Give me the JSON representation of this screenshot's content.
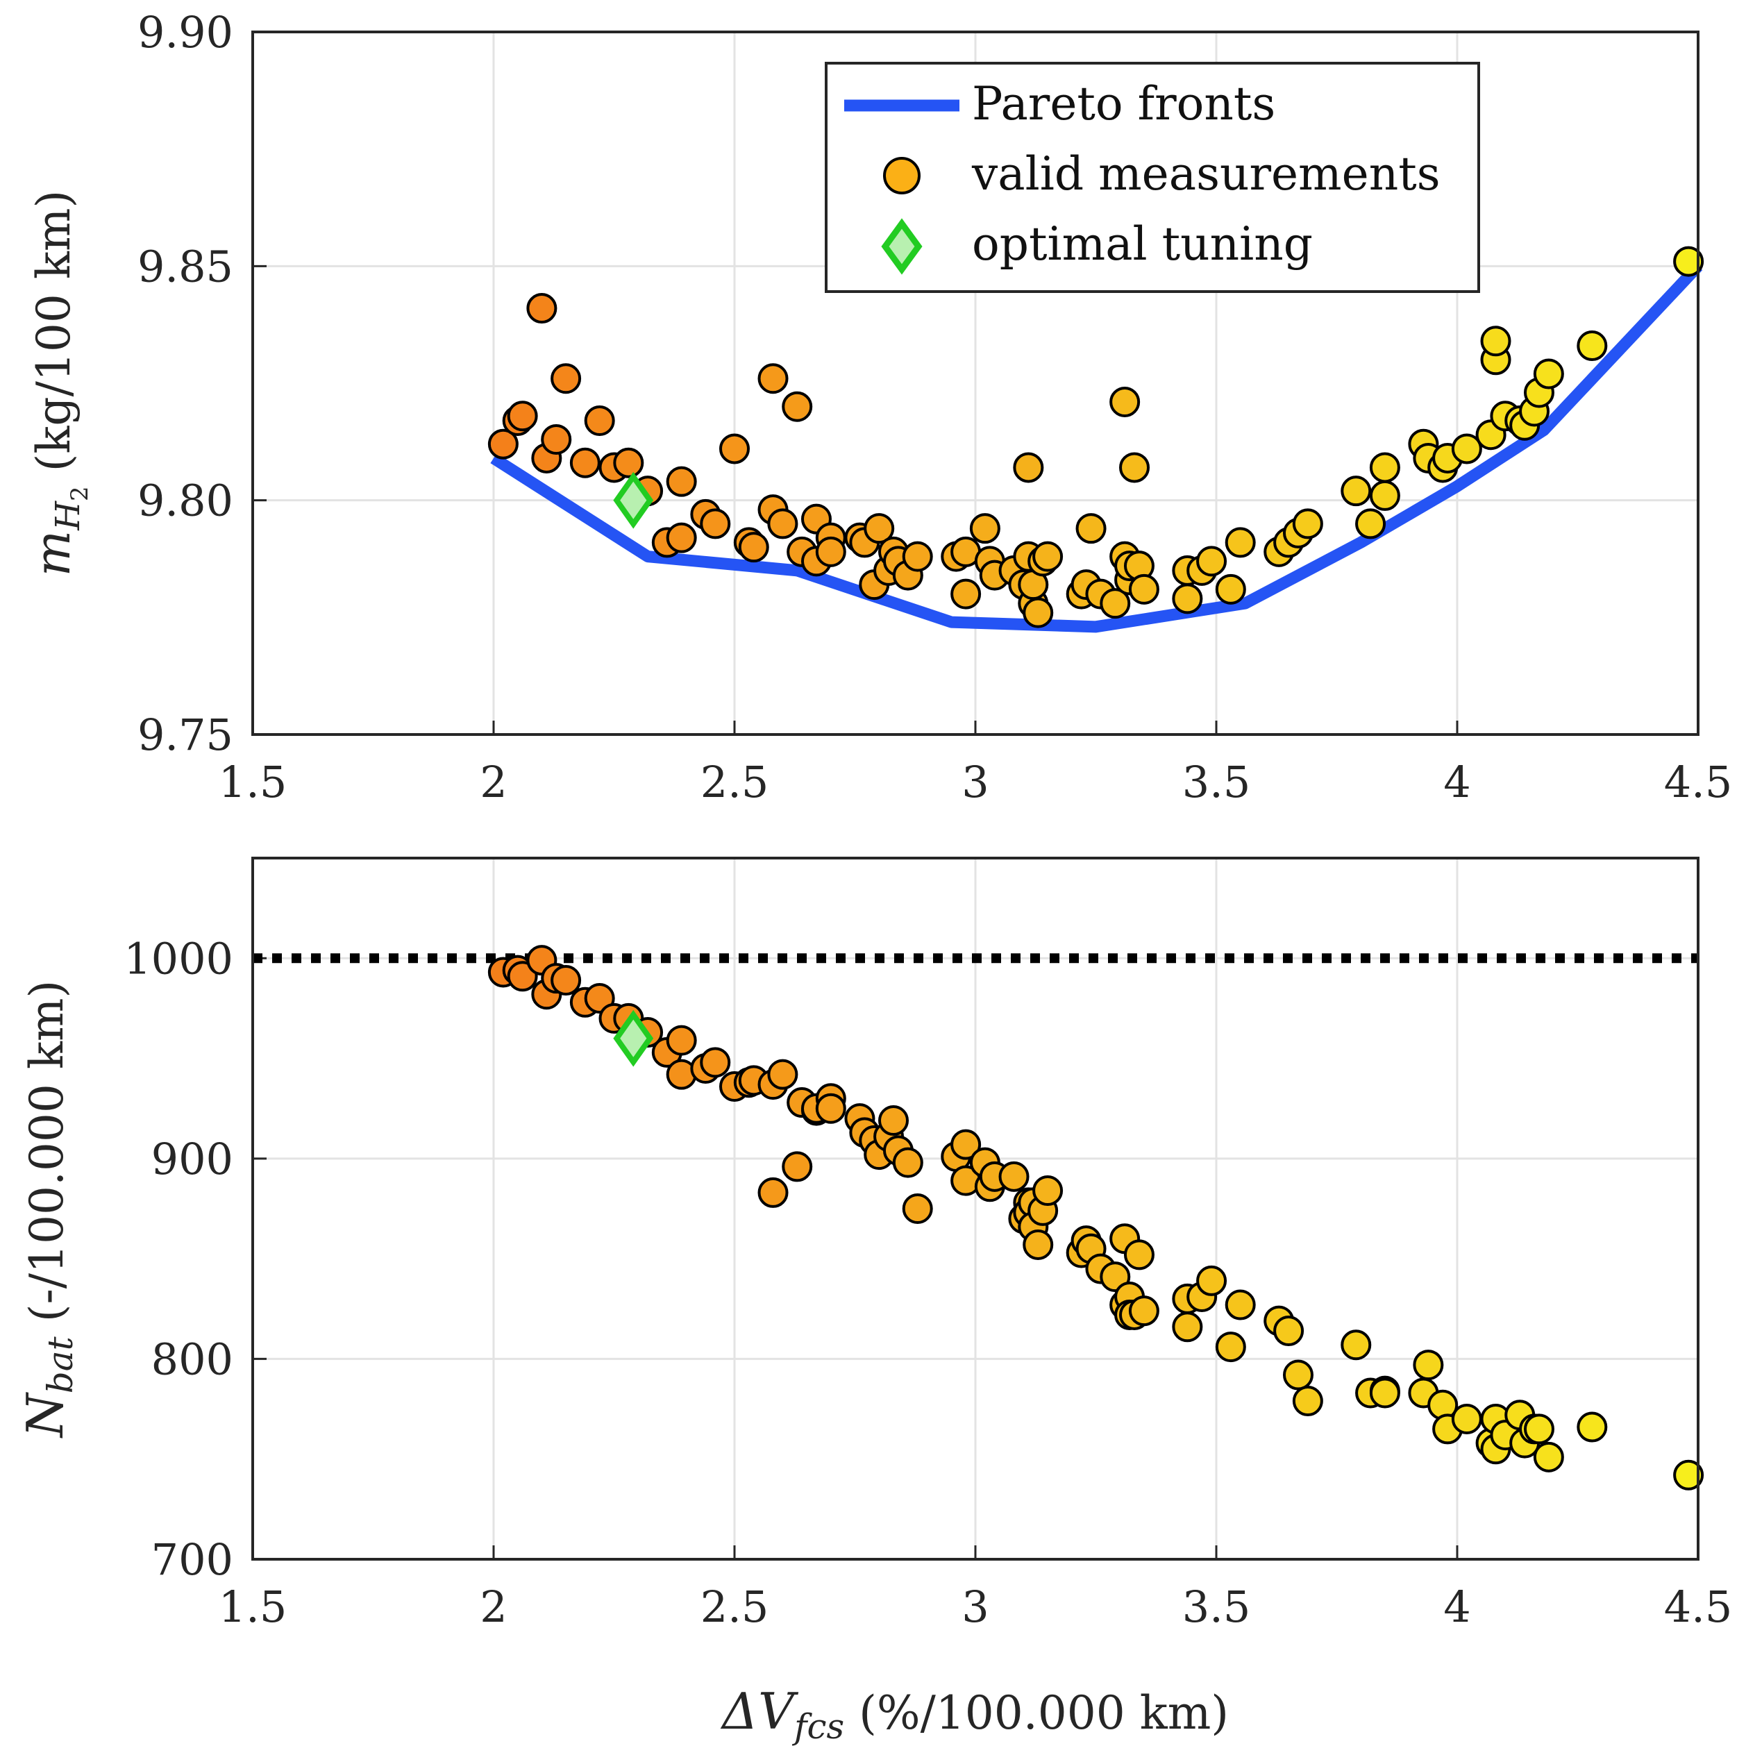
{
  "chart_data": [
    {
      "type": "scatter",
      "xlim": [
        1.5,
        4.5
      ],
      "ylim": [
        9.75,
        9.9
      ],
      "x_ticks": [
        "1.5",
        "2",
        "2.5",
        "3",
        "3.5",
        "4",
        "4.5"
      ],
      "y_ticks": [
        "9.75",
        "9.80",
        "9.85",
        "9.90"
      ],
      "ylabel": "m_H2 (kg/100 km)",
      "ylabel_parts": {
        "sym": "m",
        "sub": "H",
        "subsub": "2",
        "unit": " (kg/100 km)"
      },
      "grid": true,
      "legend": {
        "placement": "top-right",
        "entries": [
          {
            "label": "Pareto fronts",
            "kind": "line",
            "color": "#2554f4"
          },
          {
            "label": "valid measurements",
            "kind": "circle",
            "color": "#fbb016"
          },
          {
            "label": "optimal tuning",
            "kind": "diamond",
            "color": "#22cc22"
          }
        ]
      },
      "pareto_front": {
        "color": "#2554f4",
        "x": [
          2.0,
          2.32,
          2.63,
          2.95,
          3.25,
          3.56,
          3.8,
          4.0,
          4.18,
          4.5
        ],
        "y": [
          9.809,
          9.788,
          9.785,
          9.774,
          9.773,
          9.778,
          9.791,
          9.803,
          9.815,
          9.85
        ]
      },
      "valid_measurements": {
        "x": [
          2.02,
          2.05,
          2.06,
          2.1,
          2.11,
          2.13,
          2.15,
          2.19,
          2.22,
          2.25,
          2.28,
          2.32,
          2.36,
          2.39,
          2.39,
          2.44,
          2.46,
          2.5,
          2.53,
          2.54,
          2.58,
          2.58,
          2.6,
          2.63,
          2.64,
          2.67,
          2.67,
          2.7,
          2.7,
          2.76,
          2.77,
          2.79,
          2.8,
          2.82,
          2.83,
          2.84,
          2.86,
          2.88,
          2.96,
          2.98,
          2.98,
          3.02,
          3.03,
          3.04,
          3.08,
          3.1,
          3.11,
          3.11,
          3.12,
          3.12,
          3.13,
          3.14,
          3.15,
          3.22,
          3.23,
          3.24,
          3.26,
          3.29,
          3.31,
          3.31,
          3.32,
          3.32,
          3.33,
          3.34,
          3.35,
          3.44,
          3.44,
          3.47,
          3.49,
          3.53,
          3.55,
          3.63,
          3.65,
          3.67,
          3.69,
          3.79,
          3.82,
          3.85,
          3.85,
          3.93,
          3.94,
          3.97,
          3.98,
          4.02,
          4.07,
          4.08,
          4.08,
          4.1,
          4.13,
          4.14,
          4.16,
          4.17,
          4.19,
          4.28,
          4.48
        ],
        "y": [
          9.812,
          9.817,
          9.818,
          9.841,
          9.809,
          9.813,
          9.826,
          9.808,
          9.817,
          9.807,
          9.808,
          9.802,
          9.791,
          9.804,
          9.792,
          9.797,
          9.795,
          9.811,
          9.791,
          9.79,
          9.798,
          9.826,
          9.795,
          9.82,
          9.789,
          9.796,
          9.787,
          9.792,
          9.789,
          9.792,
          9.791,
          9.782,
          9.794,
          9.785,
          9.789,
          9.787,
          9.784,
          9.788,
          9.788,
          9.789,
          9.78,
          9.794,
          9.787,
          9.784,
          9.785,
          9.782,
          9.807,
          9.788,
          9.778,
          9.782,
          9.776,
          9.787,
          9.788,
          9.78,
          9.782,
          9.794,
          9.78,
          9.778,
          9.821,
          9.788,
          9.783,
          9.786,
          9.807,
          9.786,
          9.781,
          9.779,
          9.785,
          9.785,
          9.787,
          9.781,
          9.791,
          9.789,
          9.791,
          9.793,
          9.795,
          9.802,
          9.795,
          9.807,
          9.801,
          9.812,
          9.809,
          9.807,
          9.809,
          9.811,
          9.814,
          9.83,
          9.834,
          9.818,
          9.817,
          9.816,
          9.819,
          9.823,
          9.827,
          9.833,
          9.851
        ],
        "color_range": [
          "#f4801a",
          "#f7ee1c"
        ]
      },
      "optimal_tuning": {
        "x": 2.29,
        "y": 9.8,
        "color": "#22cc22"
      }
    },
    {
      "type": "scatter",
      "xlim": [
        1.5,
        4.5
      ],
      "ylim": [
        700,
        1050
      ],
      "x_ticks": [
        "1.5",
        "2",
        "2.5",
        "3",
        "3.5",
        "4",
        "4.5"
      ],
      "y_ticks": [
        "700",
        "800",
        "900",
        "1000"
      ],
      "xlabel": "ΔV_fcs (%/100.000 km)",
      "xlabel_parts": {
        "sym": "ΔV",
        "sub": "fcs",
        "unit": " (%/100.000 km)"
      },
      "ylabel": "N_bat (-/100.000 km)",
      "ylabel_parts": {
        "sym": "N",
        "sub": "bat",
        "unit": " (-/100.000 km)"
      },
      "grid": true,
      "limit_line": {
        "y": 1000,
        "style": "dotted",
        "color": "#000000"
      },
      "valid_measurements": {
        "x": [
          2.02,
          2.05,
          2.06,
          2.1,
          2.11,
          2.13,
          2.15,
          2.19,
          2.22,
          2.25,
          2.28,
          2.32,
          2.36,
          2.39,
          2.39,
          2.44,
          2.46,
          2.5,
          2.53,
          2.54,
          2.58,
          2.58,
          2.6,
          2.63,
          2.64,
          2.67,
          2.67,
          2.7,
          2.7,
          2.76,
          2.77,
          2.79,
          2.8,
          2.82,
          2.83,
          2.84,
          2.86,
          2.88,
          2.96,
          2.98,
          2.98,
          3.02,
          3.03,
          3.04,
          3.08,
          3.1,
          3.11,
          3.11,
          3.12,
          3.12,
          3.13,
          3.14,
          3.15,
          3.22,
          3.23,
          3.24,
          3.26,
          3.29,
          3.31,
          3.31,
          3.32,
          3.32,
          3.33,
          3.34,
          3.35,
          3.44,
          3.44,
          3.47,
          3.49,
          3.53,
          3.55,
          3.63,
          3.65,
          3.67,
          3.69,
          3.79,
          3.82,
          3.85,
          3.85,
          3.93,
          3.94,
          3.97,
          3.98,
          4.02,
          4.07,
          4.08,
          4.08,
          4.1,
          4.13,
          4.14,
          4.16,
          4.17,
          4.19,
          4.28,
          4.48
        ],
        "y": [
          993,
          994,
          991,
          999,
          982,
          990,
          989,
          978,
          980,
          970,
          970,
          963,
          953,
          959,
          942,
          945,
          948,
          936,
          938,
          939,
          937,
          883,
          942,
          896,
          928,
          924,
          925,
          930,
          925,
          920,
          913,
          909,
          902,
          911,
          919,
          904,
          898,
          875,
          901,
          889,
          907,
          898,
          886,
          891,
          891,
          870,
          878,
          873,
          878,
          866,
          857,
          874,
          884,
          853,
          859,
          855,
          845,
          841,
          860,
          827,
          831,
          822,
          822,
          852,
          824,
          830,
          816,
          831,
          839,
          806,
          827,
          819,
          814,
          792,
          779,
          807,
          783,
          784,
          783,
          783,
          797,
          777,
          765,
          770,
          758,
          770,
          755,
          762,
          772,
          758,
          765,
          765,
          751,
          766,
          742
        ],
        "color_range": [
          "#f4801a",
          "#f7ee1c"
        ]
      },
      "optimal_tuning": {
        "x": 2.29,
        "y": 960,
        "color": "#22cc22"
      }
    }
  ]
}
